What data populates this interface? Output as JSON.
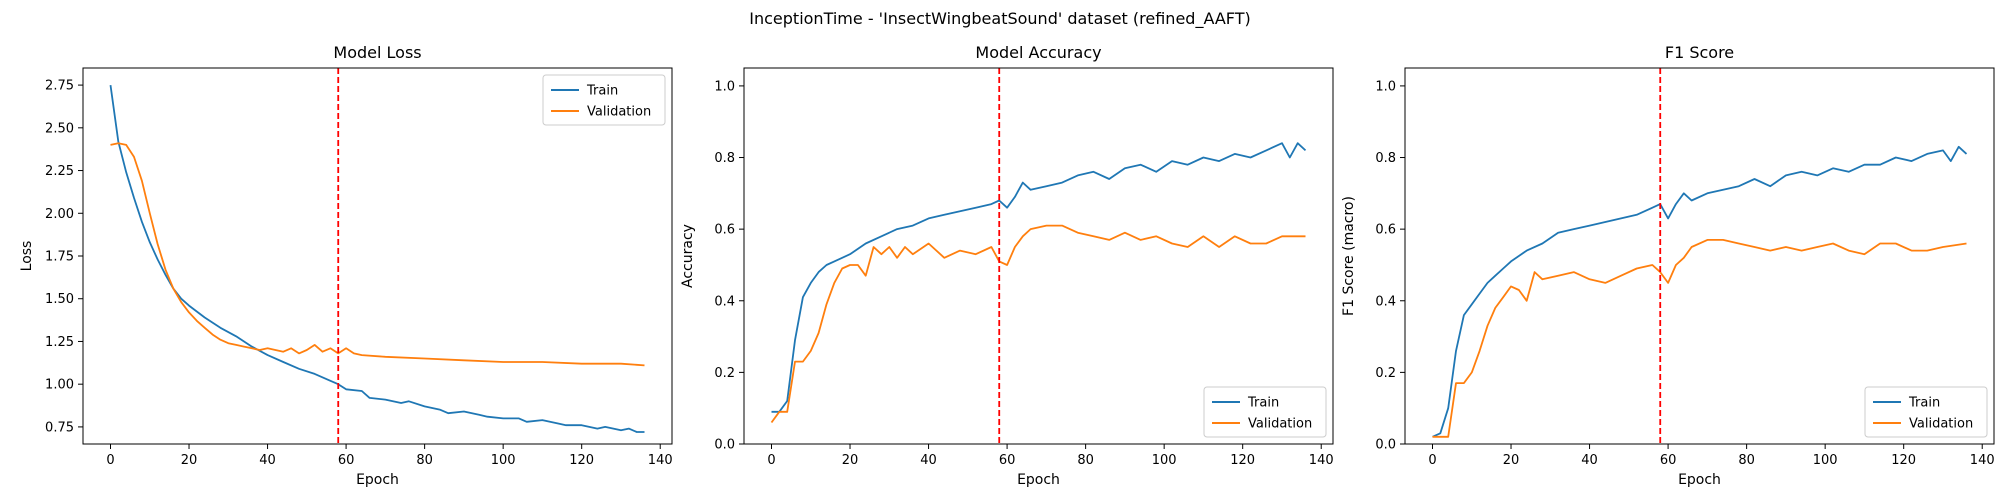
{
  "suptitle": "InceptionTime - 'InsectWingbeatSound' dataset (refined_AAFT)",
  "colors": {
    "train": "#1f77b4",
    "validation": "#ff7f0e",
    "marker": "#ff0000"
  },
  "chart_data": [
    {
      "type": "line",
      "title": "Model Loss",
      "xlabel": "Epoch",
      "ylabel": "Loss",
      "xlim": [
        -7,
        143
      ],
      "ylim": [
        0.65,
        2.85
      ],
      "xticks": [
        0,
        20,
        40,
        60,
        80,
        100,
        120,
        140
      ],
      "yticks": [
        0.75,
        1.0,
        1.25,
        1.5,
        1.75,
        2.0,
        2.25,
        2.5,
        2.75
      ],
      "ytick_labels": [
        "0.75",
        "1.00",
        "1.25",
        "1.50",
        "1.75",
        "2.00",
        "2.25",
        "2.50",
        "2.75"
      ],
      "vline": 58,
      "legend": "top-right",
      "series": [
        {
          "name": "Train",
          "color": "#1f77b4",
          "x": [
            0,
            2,
            4,
            6,
            8,
            10,
            12,
            14,
            16,
            18,
            20,
            24,
            28,
            32,
            36,
            40,
            44,
            48,
            52,
            56,
            58,
            60,
            64,
            66,
            70,
            74,
            76,
            80,
            84,
            86,
            90,
            94,
            96,
            100,
            104,
            106,
            110,
            114,
            116,
            120,
            124,
            126,
            130,
            132,
            134,
            136
          ],
          "y": [
            2.75,
            2.42,
            2.24,
            2.09,
            1.95,
            1.83,
            1.73,
            1.64,
            1.56,
            1.5,
            1.46,
            1.39,
            1.33,
            1.28,
            1.22,
            1.17,
            1.13,
            1.09,
            1.06,
            1.02,
            1.0,
            0.97,
            0.96,
            0.92,
            0.91,
            0.89,
            0.9,
            0.87,
            0.85,
            0.83,
            0.84,
            0.82,
            0.81,
            0.8,
            0.8,
            0.78,
            0.79,
            0.77,
            0.76,
            0.76,
            0.74,
            0.75,
            0.73,
            0.74,
            0.72,
            0.72
          ]
        },
        {
          "name": "Validation",
          "color": "#ff7f0e",
          "x": [
            0,
            2,
            4,
            6,
            8,
            10,
            12,
            14,
            16,
            18,
            20,
            22,
            24,
            26,
            28,
            30,
            32,
            34,
            36,
            38,
            40,
            42,
            44,
            46,
            48,
            50,
            52,
            54,
            56,
            58,
            60,
            62,
            64,
            70,
            80,
            90,
            100,
            110,
            120,
            130,
            136
          ],
          "y": [
            2.4,
            2.41,
            2.4,
            2.33,
            2.19,
            2.0,
            1.82,
            1.67,
            1.56,
            1.48,
            1.42,
            1.37,
            1.33,
            1.29,
            1.26,
            1.24,
            1.23,
            1.22,
            1.21,
            1.2,
            1.21,
            1.2,
            1.19,
            1.21,
            1.18,
            1.2,
            1.23,
            1.19,
            1.21,
            1.18,
            1.21,
            1.18,
            1.17,
            1.16,
            1.15,
            1.14,
            1.13,
            1.13,
            1.12,
            1.12,
            1.11
          ]
        }
      ]
    },
    {
      "type": "line",
      "title": "Model Accuracy",
      "xlabel": "Epoch",
      "ylabel": "Accuracy",
      "xlim": [
        -7,
        143
      ],
      "ylim": [
        0.0,
        1.05
      ],
      "xticks": [
        0,
        20,
        40,
        60,
        80,
        100,
        120,
        140
      ],
      "yticks": [
        0.0,
        0.2,
        0.4,
        0.6,
        0.8,
        1.0
      ],
      "ytick_labels": [
        "0.0",
        "0.2",
        "0.4",
        "0.6",
        "0.8",
        "1.0"
      ],
      "vline": 58,
      "legend": "bottom-right",
      "series": [
        {
          "name": "Train",
          "color": "#1f77b4",
          "x": [
            0,
            2,
            4,
            6,
            8,
            10,
            12,
            14,
            16,
            18,
            20,
            24,
            28,
            32,
            36,
            40,
            44,
            48,
            52,
            56,
            58,
            60,
            62,
            64,
            66,
            70,
            74,
            78,
            82,
            86,
            90,
            94,
            98,
            102,
            106,
            110,
            114,
            118,
            122,
            126,
            130,
            132,
            134,
            136
          ],
          "y": [
            0.09,
            0.09,
            0.12,
            0.29,
            0.41,
            0.45,
            0.48,
            0.5,
            0.51,
            0.52,
            0.53,
            0.56,
            0.58,
            0.6,
            0.61,
            0.63,
            0.64,
            0.65,
            0.66,
            0.67,
            0.68,
            0.66,
            0.69,
            0.73,
            0.71,
            0.72,
            0.73,
            0.75,
            0.76,
            0.74,
            0.77,
            0.78,
            0.76,
            0.79,
            0.78,
            0.8,
            0.79,
            0.81,
            0.8,
            0.82,
            0.84,
            0.8,
            0.84,
            0.82
          ]
        },
        {
          "name": "Validation",
          "color": "#ff7f0e",
          "x": [
            0,
            2,
            4,
            6,
            8,
            10,
            12,
            14,
            16,
            18,
            20,
            22,
            24,
            26,
            28,
            30,
            32,
            34,
            36,
            40,
            44,
            48,
            52,
            56,
            58,
            60,
            62,
            64,
            66,
            70,
            74,
            78,
            82,
            86,
            90,
            94,
            98,
            102,
            106,
            110,
            114,
            118,
            122,
            126,
            130,
            136
          ],
          "y": [
            0.06,
            0.09,
            0.09,
            0.23,
            0.23,
            0.26,
            0.31,
            0.39,
            0.45,
            0.49,
            0.5,
            0.5,
            0.47,
            0.55,
            0.53,
            0.55,
            0.52,
            0.55,
            0.53,
            0.56,
            0.52,
            0.54,
            0.53,
            0.55,
            0.51,
            0.5,
            0.55,
            0.58,
            0.6,
            0.61,
            0.61,
            0.59,
            0.58,
            0.57,
            0.59,
            0.57,
            0.58,
            0.56,
            0.55,
            0.58,
            0.55,
            0.58,
            0.56,
            0.56,
            0.58,
            0.58
          ]
        }
      ]
    },
    {
      "type": "line",
      "title": "F1 Score",
      "xlabel": "Epoch",
      "ylabel": "F1 Score (macro)",
      "xlim": [
        -7,
        143
      ],
      "ylim": [
        0.0,
        1.05
      ],
      "xticks": [
        0,
        20,
        40,
        60,
        80,
        100,
        120,
        140
      ],
      "yticks": [
        0.0,
        0.2,
        0.4,
        0.6,
        0.8,
        1.0
      ],
      "ytick_labels": [
        "0.0",
        "0.2",
        "0.4",
        "0.6",
        "0.8",
        "1.0"
      ],
      "vline": 58,
      "legend": "bottom-right",
      "series": [
        {
          "name": "Train",
          "color": "#1f77b4",
          "x": [
            0,
            2,
            4,
            6,
            8,
            10,
            12,
            14,
            16,
            18,
            20,
            24,
            28,
            32,
            36,
            40,
            44,
            48,
            52,
            56,
            58,
            60,
            62,
            64,
            66,
            70,
            74,
            78,
            82,
            86,
            90,
            94,
            98,
            102,
            106,
            110,
            114,
            118,
            122,
            126,
            130,
            132,
            134,
            136
          ],
          "y": [
            0.02,
            0.03,
            0.1,
            0.26,
            0.36,
            0.39,
            0.42,
            0.45,
            0.47,
            0.49,
            0.51,
            0.54,
            0.56,
            0.59,
            0.6,
            0.61,
            0.62,
            0.63,
            0.64,
            0.66,
            0.67,
            0.63,
            0.67,
            0.7,
            0.68,
            0.7,
            0.71,
            0.72,
            0.74,
            0.72,
            0.75,
            0.76,
            0.75,
            0.77,
            0.76,
            0.78,
            0.78,
            0.8,
            0.79,
            0.81,
            0.82,
            0.79,
            0.83,
            0.81
          ]
        },
        {
          "name": "Validation",
          "color": "#ff7f0e",
          "x": [
            0,
            2,
            4,
            6,
            8,
            10,
            12,
            14,
            16,
            18,
            20,
            22,
            24,
            26,
            28,
            32,
            36,
            40,
            44,
            48,
            52,
            56,
            58,
            60,
            62,
            64,
            66,
            70,
            74,
            78,
            82,
            86,
            90,
            94,
            98,
            102,
            106,
            110,
            114,
            118,
            122,
            126,
            130,
            136
          ],
          "y": [
            0.02,
            0.02,
            0.02,
            0.17,
            0.17,
            0.2,
            0.26,
            0.33,
            0.38,
            0.41,
            0.44,
            0.43,
            0.4,
            0.48,
            0.46,
            0.47,
            0.48,
            0.46,
            0.45,
            0.47,
            0.49,
            0.5,
            0.48,
            0.45,
            0.5,
            0.52,
            0.55,
            0.57,
            0.57,
            0.56,
            0.55,
            0.54,
            0.55,
            0.54,
            0.55,
            0.56,
            0.54,
            0.53,
            0.56,
            0.56,
            0.54,
            0.54,
            0.55,
            0.56
          ]
        }
      ]
    }
  ]
}
